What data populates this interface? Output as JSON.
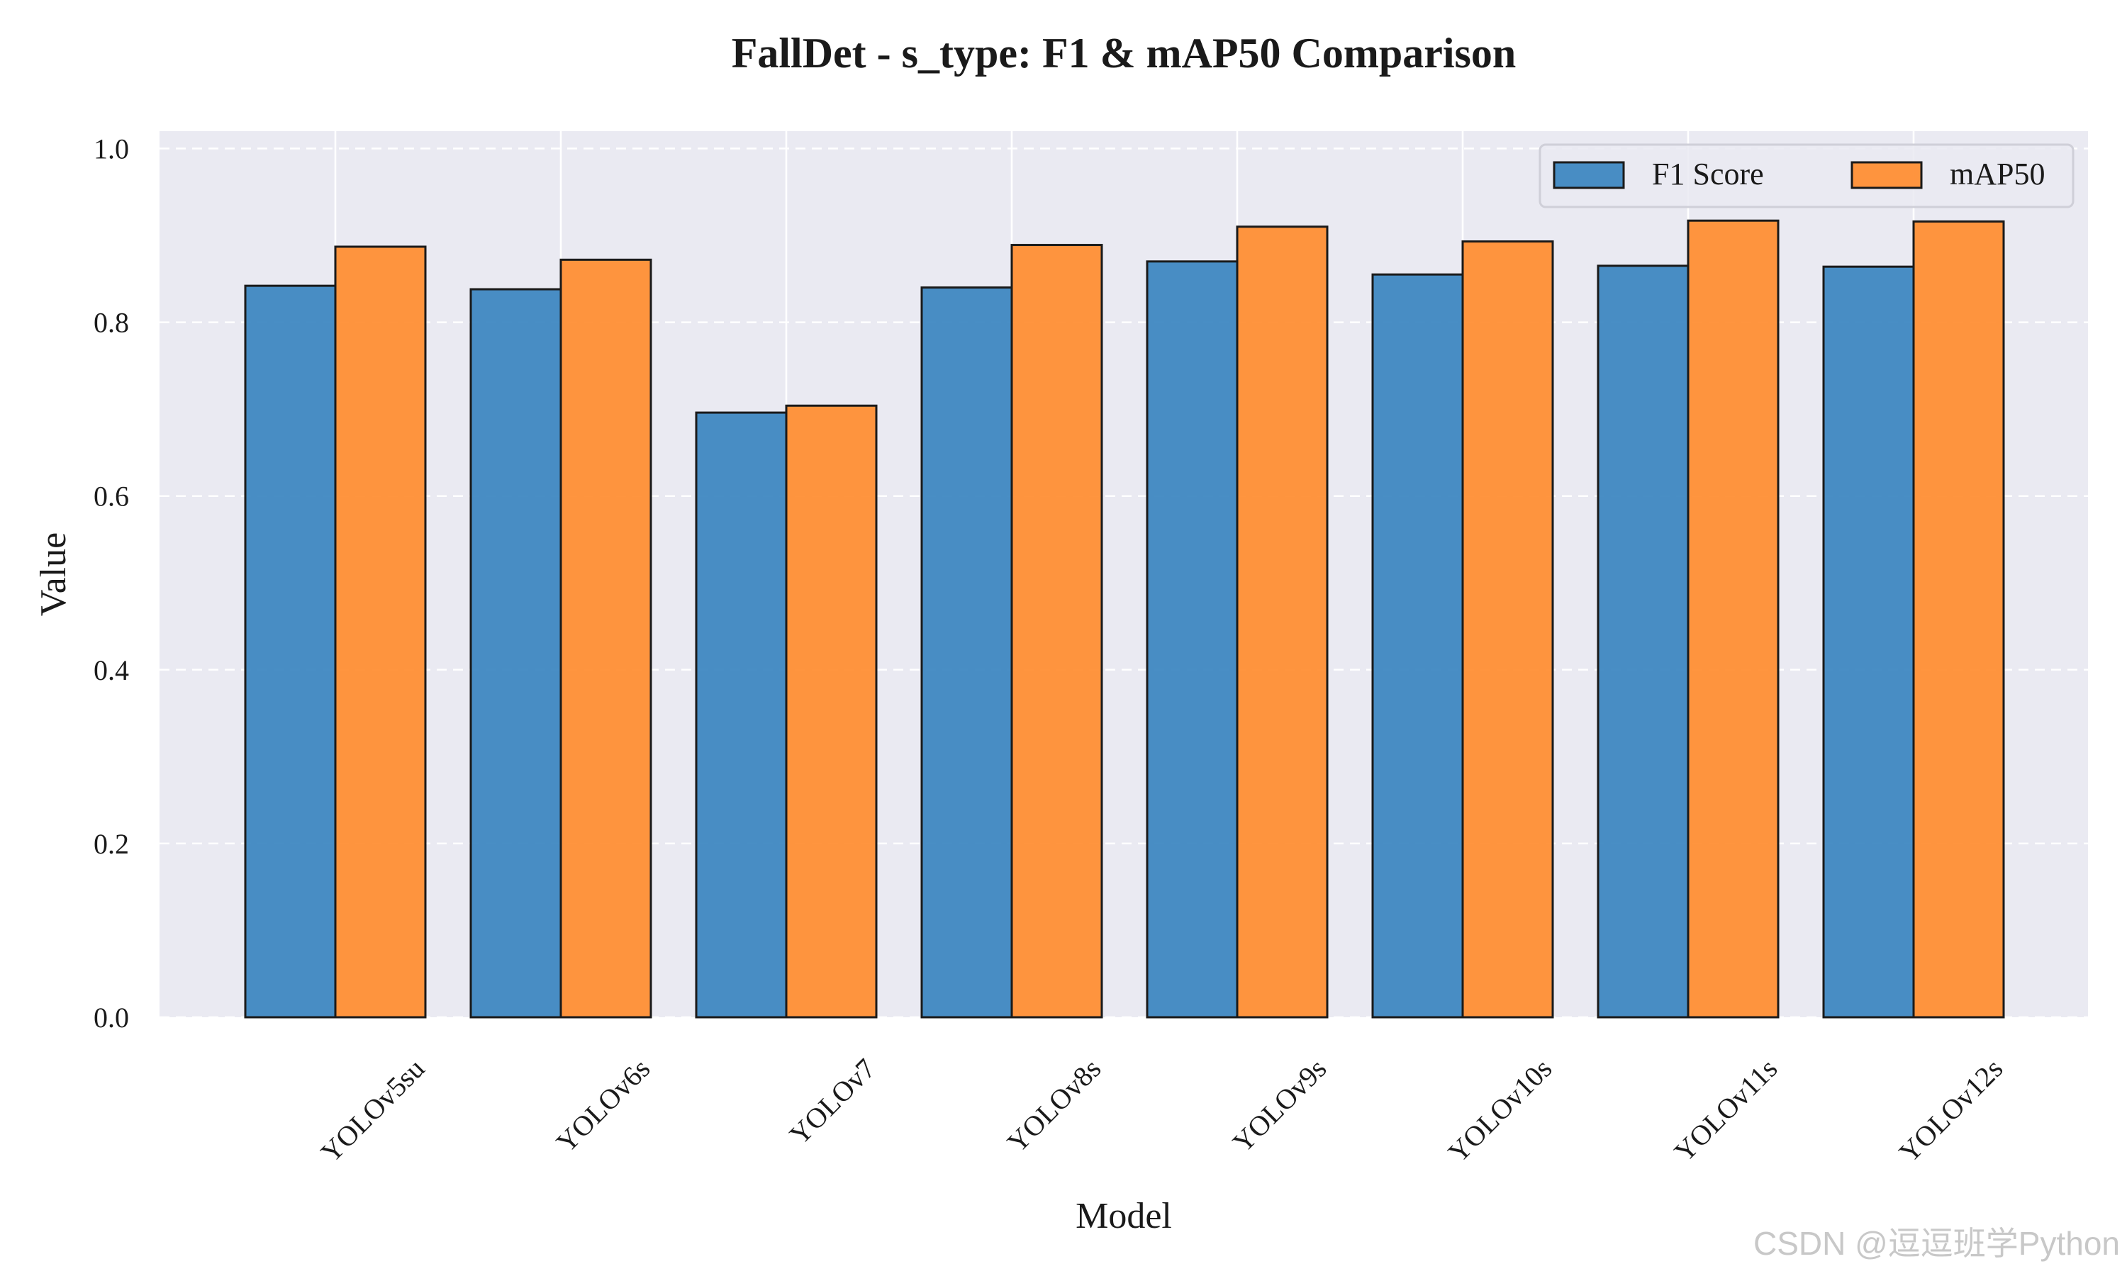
{
  "watermark": "CSDN @逗逗班学Python",
  "chart_data": {
    "type": "bar",
    "title": "FallDet - s_type: F1 & mAP50 Comparison",
    "xlabel": "Model",
    "ylabel": "Value",
    "categories": [
      "YOLOv5su",
      "YOLOv6s",
      "YOLOv7",
      "YOLOv8s",
      "YOLOv9s",
      "YOLOv10s",
      "YOLOv11s",
      "YOLOv12s"
    ],
    "series": [
      {
        "name": "F1 Score",
        "color": "#3a84c0",
        "values": [
          0.842,
          0.838,
          0.696,
          0.84,
          0.87,
          0.855,
          0.865,
          0.864
        ]
      },
      {
        "name": "mAP50",
        "color": "#ff8c2f",
        "values": [
          0.887,
          0.872,
          0.704,
          0.889,
          0.91,
          0.893,
          0.917,
          0.916
        ]
      }
    ],
    "ylim": [
      0,
      1.02
    ],
    "yticks": [
      "0.0",
      "0.2",
      "0.4",
      "0.6",
      "0.8",
      "1.0"
    ],
    "grid": true,
    "legend_position": "top-right"
  }
}
